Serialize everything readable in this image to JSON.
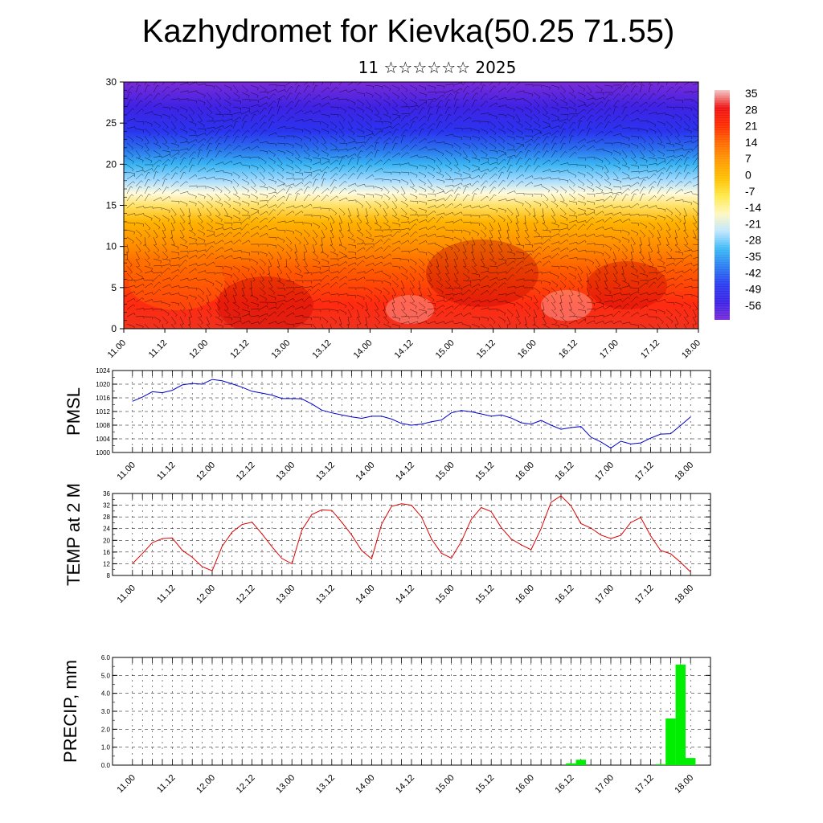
{
  "header": {
    "title": "Kazhydromet for Kievka(50.25 71.55)",
    "subtitle": "11 ☆☆☆☆☆☆ 2025"
  },
  "chart_data": [
    {
      "type": "heatmap",
      "name": "cross-section",
      "ylim": [
        0,
        30
      ],
      "yticks": [
        "0",
        "5",
        "10",
        "15",
        "20",
        "25",
        "30"
      ],
      "xticks": [
        "11.00",
        "11.12",
        "12.00",
        "12.12",
        "13.00",
        "13.12",
        "14.00",
        "14.12",
        "15.00",
        "15.12",
        "16.00",
        "16.12",
        "17.00",
        "17.12",
        "18.00"
      ],
      "colorbar": {
        "labels": [
          "35",
          "28",
          "21",
          "14",
          "7",
          "0",
          "-7",
          "-14",
          "-21",
          "-28",
          "-35",
          "-42",
          "-49",
          "-56"
        ],
        "colors": [
          "#f2c6c6",
          "#ee1111",
          "#ff2a00",
          "#ff6a00",
          "#ff9a00",
          "#ffc000",
          "#ffe94a",
          "#fff7c0",
          "#bfe6ff",
          "#3ab8f5",
          "#2a7cf0",
          "#2a3cf0",
          "#3a22e6",
          "#7a2ad8"
        ]
      },
      "layers": [
        {
          "level": 0,
          "color": "#f0321f"
        },
        {
          "level": 3,
          "color": "#ff2a10"
        },
        {
          "level": 7,
          "color": "#ff5a00"
        },
        {
          "level": 10,
          "color": "#ff8c00"
        },
        {
          "level": 13,
          "color": "#ffb400"
        },
        {
          "level": 15,
          "color": "#ffe26a"
        },
        {
          "level": 16.5,
          "color": "#fffbe0"
        },
        {
          "level": 18,
          "color": "#a8dcff"
        },
        {
          "level": 20,
          "color": "#38b4f3"
        },
        {
          "level": 22,
          "color": "#2a6cee"
        },
        {
          "level": 24,
          "color": "#2a34ef"
        },
        {
          "level": 27,
          "color": "#3f22e4"
        },
        {
          "level": 30,
          "color": "#7b2bd8"
        }
      ]
    },
    {
      "type": "line",
      "name": "pmsl",
      "ylabel": "PMSL",
      "ylim": [
        1000,
        1024
      ],
      "yticks": [
        "1000",
        "1004",
        "1008",
        "1012",
        "1016",
        "1020",
        "1024"
      ],
      "xticks": [
        "11.00",
        "11.12",
        "12.00",
        "12.12",
        "13.00",
        "13.12",
        "14.00",
        "14.12",
        "15.00",
        "15.12",
        "16.00",
        "16.12",
        "17.00",
        "17.12",
        "18.00"
      ],
      "color": "#0000cc",
      "x": [
        0,
        3,
        6,
        9,
        12,
        15,
        18,
        21,
        24,
        27,
        30,
        33,
        36,
        39,
        42,
        45,
        48,
        51,
        54,
        57,
        60,
        63,
        66,
        69,
        72,
        75,
        78,
        81,
        84,
        87,
        90,
        93,
        96,
        99,
        102,
        105,
        108,
        111,
        114,
        117,
        120,
        123,
        126,
        129,
        132,
        135,
        138,
        141,
        144,
        147,
        150,
        153,
        156,
        159,
        162,
        165,
        168
      ],
      "values": [
        1015,
        1016.2,
        1017.8,
        1017.5,
        1018.2,
        1019.8,
        1020.2,
        1020.0,
        1021.4,
        1021.0,
        1020.1,
        1019.1,
        1017.9,
        1017.4,
        1016.8,
        1015.8,
        1015.8,
        1015.7,
        1014.2,
        1012.4,
        1011.6,
        1011.0,
        1010.4,
        1010.0,
        1010.6,
        1010.6,
        1009.8,
        1008.5,
        1008.0,
        1008.3,
        1009.0,
        1009.5,
        1011.6,
        1012.3,
        1011.9,
        1011.3,
        1010.6,
        1011.0,
        1010.1,
        1008.7,
        1008.3,
        1009.4,
        1008.0,
        1006.8,
        1007.3,
        1007.6,
        1004.5,
        1003.1,
        1001.3,
        1003.3,
        1002.5,
        1002.8,
        1004.2,
        1005.4,
        1005.5,
        1007.9,
        1010.4
      ]
    },
    {
      "type": "line",
      "name": "temp",
      "ylabel": "TEMP at 2 M",
      "ylim": [
        8,
        36
      ],
      "yticks": [
        "8",
        "12",
        "16",
        "20",
        "24",
        "28",
        "32",
        "36"
      ],
      "xticks": [
        "11.00",
        "11.12",
        "12.00",
        "12.12",
        "13.00",
        "13.12",
        "14.00",
        "14.12",
        "15.00",
        "15.12",
        "16.00",
        "16.12",
        "17.00",
        "17.12",
        "18.00"
      ],
      "color": "#dd0000",
      "x": [
        0,
        3,
        6,
        9,
        12,
        15,
        18,
        21,
        24,
        27,
        30,
        33,
        36,
        39,
        42,
        45,
        48,
        51,
        54,
        57,
        60,
        63,
        66,
        69,
        72,
        75,
        78,
        81,
        84,
        87,
        90,
        93,
        96,
        99,
        102,
        105,
        108,
        111,
        114,
        117,
        120,
        123,
        126,
        129,
        132,
        135,
        138,
        141,
        144,
        147,
        150,
        153,
        156,
        159,
        162,
        165,
        168
      ],
      "values": [
        12,
        15.5,
        19.2,
        20.6,
        20.8,
        16.6,
        14.2,
        11,
        9.6,
        18,
        22.8,
        25.4,
        26.2,
        22.2,
        17.8,
        13.8,
        12,
        23.5,
        28.8,
        30.4,
        30.2,
        26.2,
        21.8,
        16.5,
        13.7,
        25.5,
        31.6,
        32.5,
        32,
        28,
        20.5,
        15.6,
        13.9,
        19.6,
        27.2,
        31.2,
        29.8,
        24.4,
        20.5,
        18.5,
        16.8,
        24,
        33,
        35.2,
        31.8,
        25.7,
        24.2,
        21.8,
        20.6,
        21.7,
        26.1,
        27.8,
        21.5,
        16.5,
        15.4,
        12.5,
        9.2
      ]
    },
    {
      "type": "bar",
      "name": "precip",
      "ylabel": "PRECIP, mm",
      "ylim": [
        0,
        6
      ],
      "yticks": [
        "0.0",
        "1.0",
        "2.0",
        "3.0",
        "4.0",
        "5.0",
        "6.0"
      ],
      "xticks": [
        "11.00",
        "11.12",
        "12.00",
        "12.12",
        "13.00",
        "13.12",
        "14.00",
        "14.12",
        "15.00",
        "15.12",
        "16.00",
        "16.12",
        "17.00",
        "17.12",
        "18.00"
      ],
      "color": "#00ee00",
      "bars": [
        {
          "x": 132,
          "value": 0.1
        },
        {
          "x": 135,
          "value": 0.3
        },
        {
          "x": 159,
          "value": 0.05
        },
        {
          "x": 162,
          "value": 2.6
        },
        {
          "x": 165,
          "value": 5.6
        },
        {
          "x": 168,
          "value": 0.4
        }
      ]
    }
  ]
}
